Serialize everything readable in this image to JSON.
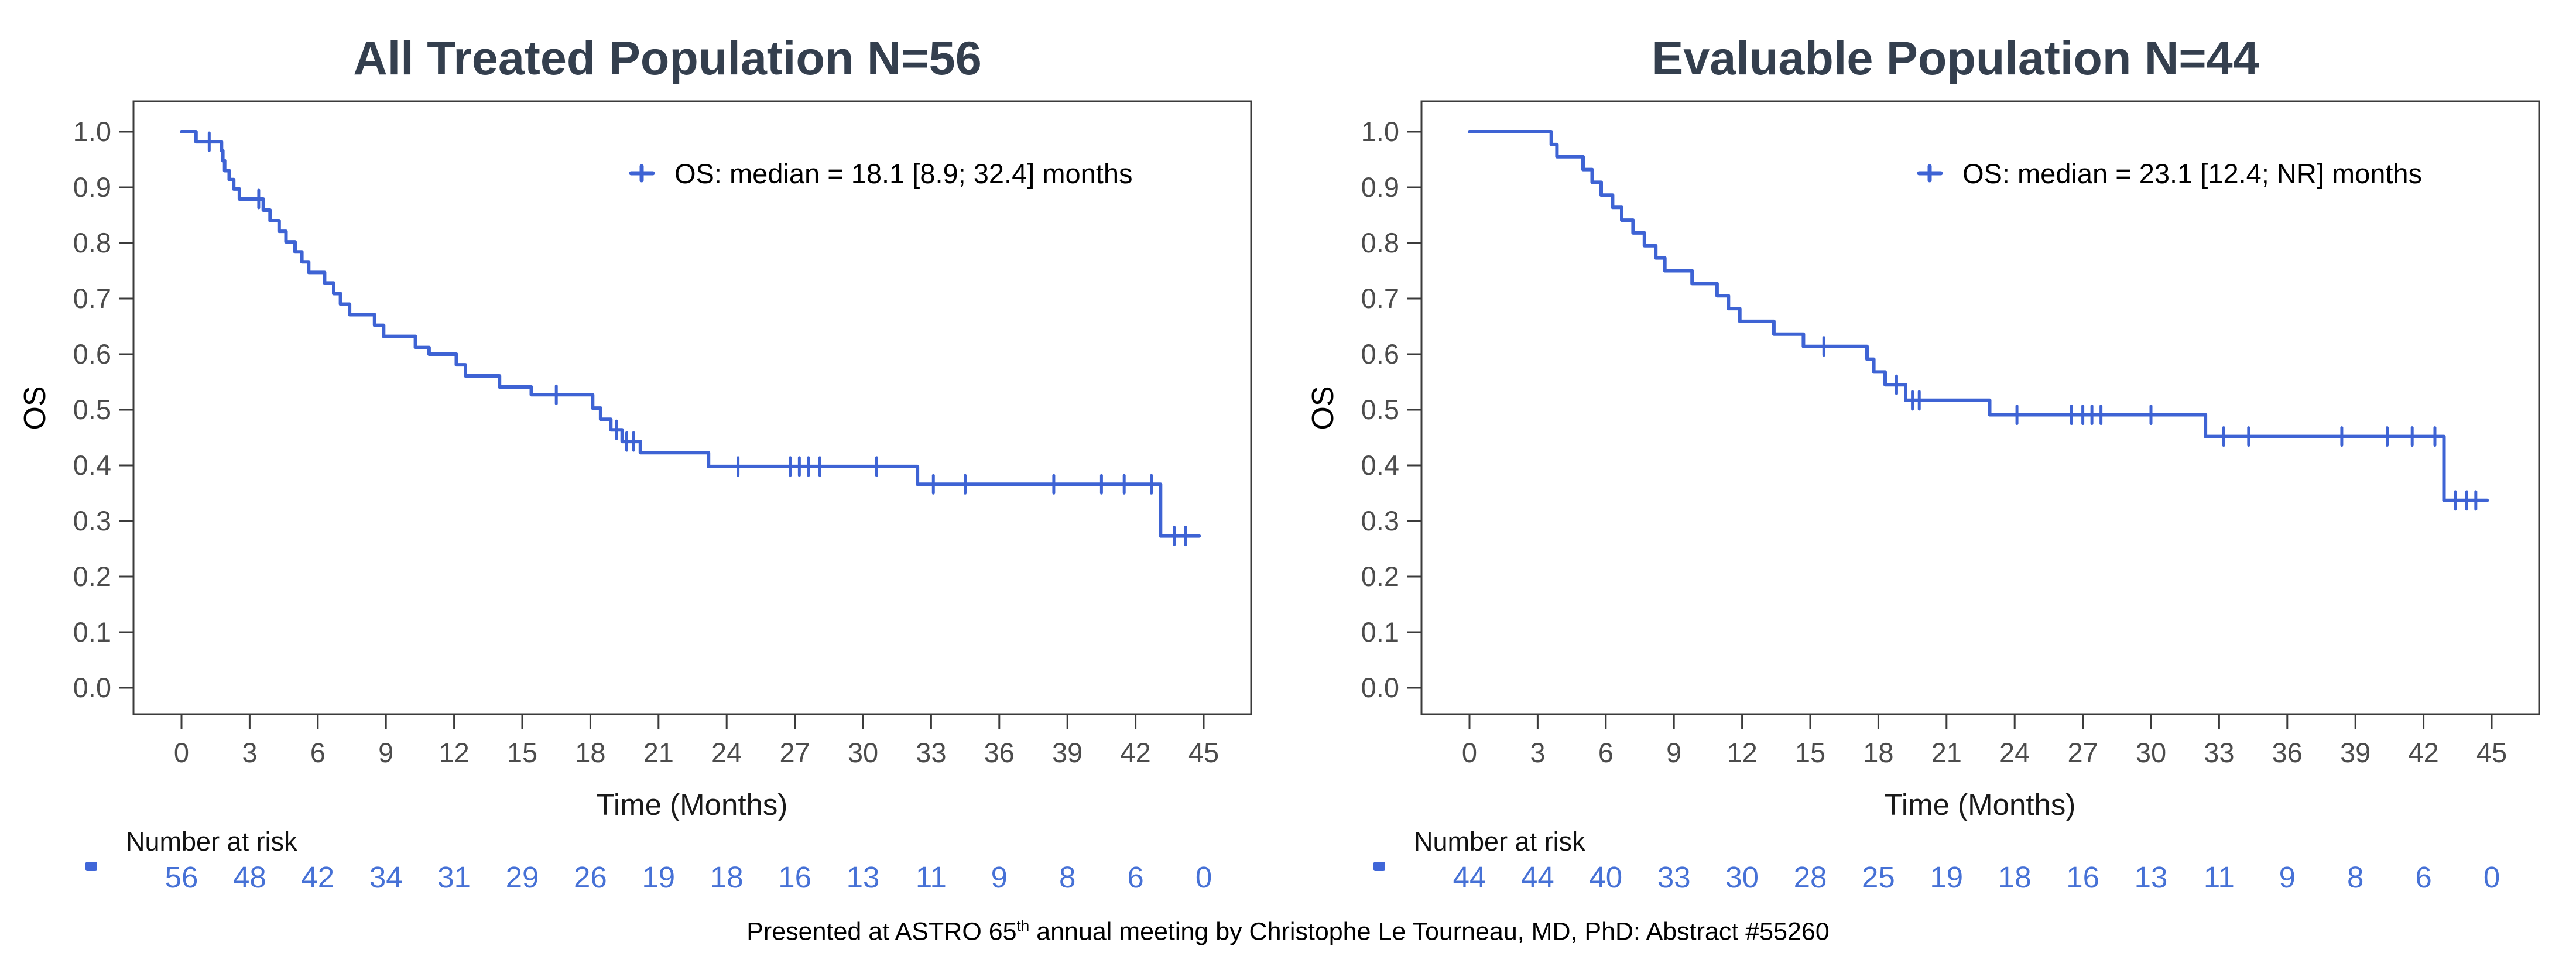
{
  "palette": {
    "curve_blue": "#3E63D4",
    "risk_text_blue": "#4671D6",
    "risk_marker_blue": "#4066D8",
    "title_color": "#343F4E",
    "axis_color": "#3B3B3B",
    "tick_label_color": "#4C4C4C",
    "text_black": "#111111"
  },
  "footer": {
    "prefix": "Presented at ASTRO 65",
    "sup": "th",
    "suffix": " annual meeting by Christophe Le Tourneau, MD, PhD: Abstract #55260"
  },
  "chart_data": [
    {
      "id": "all-treated",
      "type": "line",
      "subtype": "kaplan-meier-step",
      "title": "All Treated Population N=56",
      "legend": "OS: median = 18.1 [8.9; 32.4] months",
      "legend_position": "inside-upper-right",
      "xlabel": "Time (Months)",
      "ylabel": "OS",
      "xlim": [
        0,
        45
      ],
      "ylim": [
        0.0,
        1.0
      ],
      "grid": false,
      "xticks": [
        0,
        3,
        6,
        9,
        12,
        15,
        18,
        21,
        24,
        27,
        30,
        33,
        36,
        39,
        42,
        45
      ],
      "ytick_labels": [
        "1.0",
        "0.9",
        "0.8",
        "0.7",
        "0.6",
        "0.5",
        "0.4",
        "0.3",
        "0.2",
        "0.1",
        "0.0"
      ],
      "steps": [
        [
          0,
          1.0
        ],
        [
          0.64,
          0.982
        ],
        [
          1.76,
          0.966
        ],
        [
          1.82,
          0.948
        ],
        [
          1.9,
          0.93
        ],
        [
          2.1,
          0.914
        ],
        [
          2.3,
          0.897
        ],
        [
          2.55,
          0.879
        ],
        [
          3.6,
          0.859
        ],
        [
          3.9,
          0.84
        ],
        [
          4.3,
          0.821
        ],
        [
          4.6,
          0.802
        ],
        [
          5.0,
          0.784
        ],
        [
          5.3,
          0.766
        ],
        [
          5.6,
          0.747
        ],
        [
          6.3,
          0.728
        ],
        [
          6.7,
          0.709
        ],
        [
          7.0,
          0.69
        ],
        [
          7.4,
          0.671
        ],
        [
          8.5,
          0.652
        ],
        [
          8.9,
          0.632
        ],
        [
          10.3,
          0.612
        ],
        [
          10.9,
          0.6
        ],
        [
          12.1,
          0.581
        ],
        [
          12.5,
          0.561
        ],
        [
          14.0,
          0.541
        ],
        [
          15.4,
          0.527
        ],
        [
          18.1,
          0.503
        ],
        [
          18.45,
          0.483
        ],
        [
          18.9,
          0.464
        ],
        [
          19.4,
          0.443
        ],
        [
          20.2,
          0.423
        ],
        [
          23.2,
          0.398
        ],
        [
          32.4,
          0.366
        ],
        [
          43.1,
          0.273
        ]
      ],
      "end_time": 44.8,
      "censors": [
        [
          1.22,
          0.982
        ],
        [
          3.4,
          0.879
        ],
        [
          16.5,
          0.527
        ],
        [
          19.15,
          0.464
        ],
        [
          19.6,
          0.443
        ],
        [
          19.9,
          0.443
        ],
        [
          24.5,
          0.398
        ],
        [
          26.8,
          0.398
        ],
        [
          27.2,
          0.398
        ],
        [
          27.6,
          0.398
        ],
        [
          28.1,
          0.398
        ],
        [
          30.6,
          0.398
        ],
        [
          33.1,
          0.366
        ],
        [
          34.5,
          0.366
        ],
        [
          38.4,
          0.366
        ],
        [
          40.5,
          0.366
        ],
        [
          41.5,
          0.366
        ],
        [
          42.7,
          0.366
        ],
        [
          43.7,
          0.273
        ],
        [
          44.2,
          0.273
        ]
      ],
      "risk_header": "Number at risk",
      "risk_values": [
        56,
        48,
        42,
        34,
        31,
        29,
        26,
        19,
        18,
        16,
        13,
        11,
        9,
        8,
        6,
        0
      ]
    },
    {
      "id": "evaluable",
      "type": "line",
      "subtype": "kaplan-meier-step",
      "title": "Evaluable Population N=44",
      "legend": "OS: median = 23.1 [12.4; NR] months",
      "legend_position": "inside-upper-right",
      "xlabel": "Time (Months)",
      "ylabel": "OS",
      "xlim": [
        0,
        45
      ],
      "ylim": [
        0.0,
        1.0
      ],
      "grid": false,
      "xticks": [
        0,
        3,
        6,
        9,
        12,
        15,
        18,
        21,
        24,
        27,
        30,
        33,
        36,
        39,
        42,
        45
      ],
      "ytick_labels": [
        "1.0",
        "0.9",
        "0.8",
        "0.7",
        "0.6",
        "0.5",
        "0.4",
        "0.3",
        "0.2",
        "0.1",
        "0.0"
      ],
      "steps": [
        [
          0,
          1.0
        ],
        [
          3.6,
          0.977
        ],
        [
          3.85,
          0.955
        ],
        [
          5.0,
          0.932
        ],
        [
          5.4,
          0.909
        ],
        [
          5.8,
          0.886
        ],
        [
          6.3,
          0.864
        ],
        [
          6.7,
          0.841
        ],
        [
          7.2,
          0.818
        ],
        [
          7.7,
          0.795
        ],
        [
          8.2,
          0.773
        ],
        [
          8.6,
          0.75
        ],
        [
          9.8,
          0.727
        ],
        [
          10.9,
          0.705
        ],
        [
          11.4,
          0.682
        ],
        [
          11.9,
          0.659
        ],
        [
          13.4,
          0.636
        ],
        [
          14.7,
          0.614
        ],
        [
          17.5,
          0.591
        ],
        [
          17.8,
          0.568
        ],
        [
          18.3,
          0.545
        ],
        [
          19.2,
          0.517
        ],
        [
          22.9,
          0.491
        ],
        [
          32.4,
          0.452
        ],
        [
          42.9,
          0.337
        ]
      ],
      "end_time": 44.8,
      "censors": [
        [
          15.6,
          0.614
        ],
        [
          18.8,
          0.545
        ],
        [
          19.5,
          0.517
        ],
        [
          19.8,
          0.517
        ],
        [
          24.1,
          0.491
        ],
        [
          26.5,
          0.491
        ],
        [
          27.0,
          0.491
        ],
        [
          27.4,
          0.491
        ],
        [
          27.8,
          0.491
        ],
        [
          30.0,
          0.491
        ],
        [
          33.2,
          0.452
        ],
        [
          34.3,
          0.452
        ],
        [
          38.4,
          0.452
        ],
        [
          40.4,
          0.452
        ],
        [
          41.5,
          0.452
        ],
        [
          42.5,
          0.452
        ],
        [
          43.4,
          0.337
        ],
        [
          43.9,
          0.337
        ],
        [
          44.3,
          0.337
        ]
      ],
      "risk_header": "Number at risk",
      "risk_values": [
        44,
        44,
        40,
        33,
        30,
        28,
        25,
        19,
        18,
        16,
        13,
        11,
        9,
        8,
        6,
        0
      ]
    }
  ]
}
